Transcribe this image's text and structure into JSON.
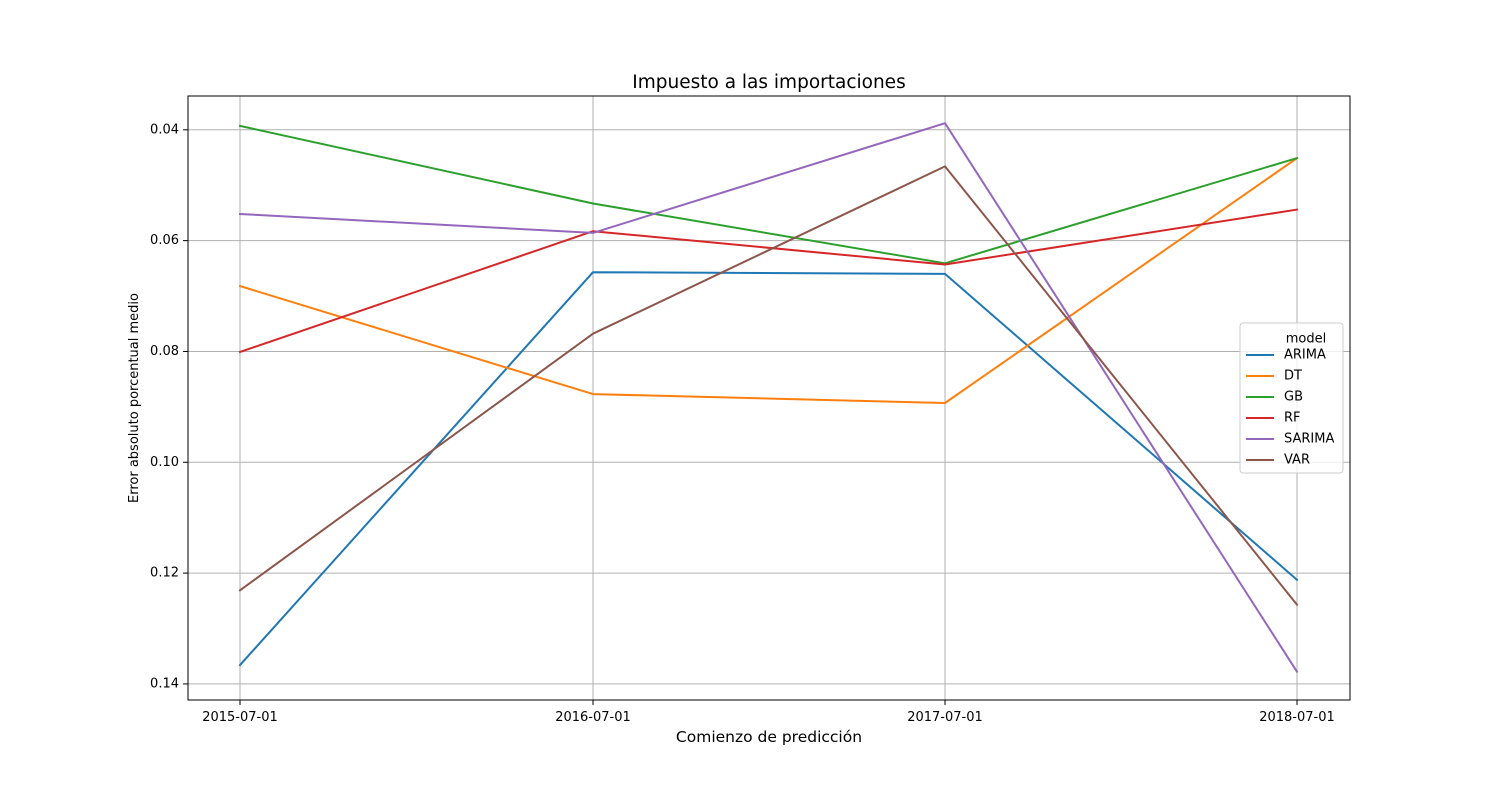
{
  "chart_data": {
    "type": "line",
    "title": "Impuesto a las importaciones",
    "xlabel": "Comienzo de predicción",
    "ylabel": "Error absoluto porcentual medio",
    "categories": [
      "2015-07-01",
      "2016-07-01",
      "2017-07-01",
      "2018-07-01"
    ],
    "y_ticks": [
      "0.04",
      "0.06",
      "0.08",
      "0.10",
      "0.12",
      "0.14"
    ],
    "ylim": [
      0.1429,
      0.0339
    ],
    "y_inverted": true,
    "grid": true,
    "legend_title": "model",
    "legend_position": "center-right",
    "series": [
      {
        "name": "ARIMA",
        "color": "#1f77b4",
        "values": [
          0.1366,
          0.0657,
          0.066,
          0.1212
        ]
      },
      {
        "name": "DT",
        "color": "#ff7f0e",
        "values": [
          0.0682,
          0.0877,
          0.0893,
          0.0451
        ]
      },
      {
        "name": "GB",
        "color": "#2ca02c",
        "values": [
          0.0393,
          0.0533,
          0.0641,
          0.0451
        ]
      },
      {
        "name": "RF",
        "color": "#d62728",
        "values": [
          0.0801,
          0.0583,
          0.0643,
          0.0544
        ]
      },
      {
        "name": "SARIMA",
        "color": "#9467bd",
        "values": [
          0.0552,
          0.0586,
          0.0388,
          0.1378
        ]
      },
      {
        "name": "VAR",
        "color": "#8c564b",
        "values": [
          0.1231,
          0.0768,
          0.0466,
          0.1257
        ]
      }
    ]
  }
}
